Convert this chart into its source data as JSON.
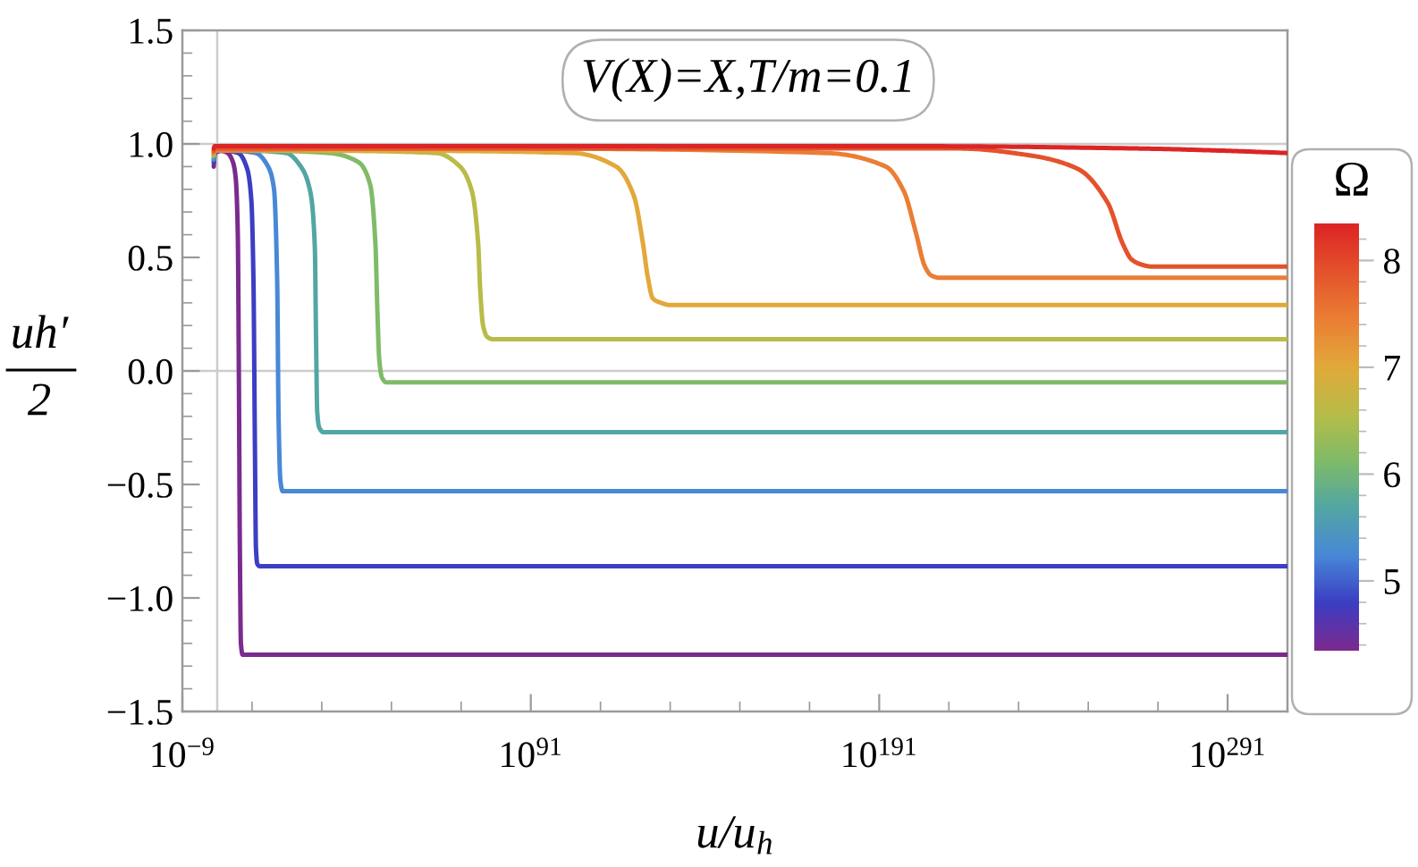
{
  "chart_data": {
    "type": "line",
    "title": "V(X)=X,T/m=0.1",
    "xlabel": "u/u$_{h}$",
    "ylabel": "uh′\n2",
    "clabel": "Ω",
    "log": "x",
    "xlim": [
      1e-09,
      1.5e+308
    ],
    "xticks": [
      {
        "value": 1e-09,
        "label": "10$^{−9}$"
      },
      {
        "value": 100000000000.0,
        "label": null
      },
      {
        "value": 1e+31,
        "label": null
      },
      {
        "value": 1e+51,
        "label": null
      },
      {
        "value": 1e+71,
        "label": null
      },
      {
        "value": 1e+91,
        "label": "10$^{91}$"
      },
      {
        "value": 1e+111,
        "label": null
      },
      {
        "value": 1e+131,
        "label": null
      },
      {
        "value": 1e+151,
        "label": null
      },
      {
        "value": 1e+171,
        "label": null
      },
      {
        "value": 1e+191,
        "label": "10$^{191}$"
      },
      {
        "value": 1e+211,
        "label": null
      },
      {
        "value": 1e+231,
        "label": null
      },
      {
        "value": 1e+251,
        "label": null
      },
      {
        "value": 1e+271,
        "label": null
      },
      {
        "value": 1e+291,
        "label": "10$^{291}$"
      }
    ],
    "ylim": [
      -1.5,
      1.5
    ],
    "yticks": [
      {
        "value": -1.5,
        "label": "−1.5"
      },
      {
        "value": -1.4,
        "label": null
      },
      {
        "value": -1.3,
        "label": null
      },
      {
        "value": -1.2,
        "label": null
      },
      {
        "value": -1.1,
        "label": null
      },
      {
        "value": -1,
        "label": "−1.0"
      },
      {
        "value": -0.9,
        "label": null
      },
      {
        "value": -0.8,
        "label": null
      },
      {
        "value": -0.7,
        "label": null
      },
      {
        "value": -0.6,
        "label": null
      },
      {
        "value": -0.5,
        "label": "−0.5"
      },
      {
        "value": -0.4,
        "label": null
      },
      {
        "value": -0.3,
        "label": null
      },
      {
        "value": -0.2,
        "label": null
      },
      {
        "value": -0.1,
        "label": null
      },
      {
        "value": 0,
        "label": "0.0"
      },
      {
        "value": 0.1,
        "label": null
      },
      {
        "value": 0.2,
        "label": null
      },
      {
        "value": 0.3,
        "label": null
      },
      {
        "value": 0.4,
        "label": null
      },
      {
        "value": 0.5,
        "label": "0.5"
      },
      {
        "value": 0.6,
        "label": null
      },
      {
        "value": 0.7,
        "label": null
      },
      {
        "value": 0.8,
        "label": null
      },
      {
        "value": 0.9,
        "label": null
      },
      {
        "value": 1,
        "label": "1.0"
      },
      {
        "value": 1.1,
        "label": null
      },
      {
        "value": 1.2,
        "label": null
      },
      {
        "value": 1.3,
        "label": null
      },
      {
        "value": 1.4,
        "label": null
      },
      {
        "value": 1.5,
        "label": "1.5"
      }
    ],
    "clim": [
      4.33,
      8.33
    ],
    "cticks": [
      {
        "value": 4.4,
        "label": null
      },
      {
        "value": 4.6,
        "label": null
      },
      {
        "value": 4.8,
        "label": null
      },
      5,
      {
        "value": 5.2,
        "label": null
      },
      {
        "value": 5.4,
        "label": null
      },
      {
        "value": 5.6,
        "label": null
      },
      {
        "value": 5.8,
        "label": null
      },
      6,
      {
        "value": 6.2,
        "label": null
      },
      {
        "value": 6.4,
        "label": null
      },
      {
        "value": 6.6,
        "label": null
      },
      {
        "value": 6.8,
        "label": null
      },
      7,
      {
        "value": 7.2,
        "label": null
      },
      {
        "value": 7.4,
        "label": null
      },
      {
        "value": 7.6,
        "label": null
      },
      {
        "value": 7.8,
        "label": null
      },
      8,
      {
        "value": 8.2,
        "label": null
      }
    ],
    "ref_lines": [
      {
        "axis": "y",
        "value": 0,
        "color": "#cccccc"
      },
      {
        "axis": "y",
        "value": 1,
        "color": "#cccccc"
      },
      {
        "axis": "x",
        "value": 10,
        "color": "#cccccc"
      }
    ],
    "series": [
      {
        "color": "#7b2a8e",
        "x": [
          1,
          2,
          100,
          10000.0,
          320000.0,
          2000000.0,
          8000000.0,
          16000000.0,
          32000000.0,
          63000000.0,
          200000000.0,
          1e+308
        ],
        "values": [
          0.9,
          0.96,
          0.97,
          0.96,
          0.92,
          0.85,
          0.6,
          0,
          -0.8,
          -1.2,
          -1.25,
          -1.25
        ]
      },
      {
        "color": "#3c3ec4",
        "x": [
          1,
          2,
          1000.0,
          10000000.0,
          4000000000.0,
          63000000000.0,
          250000000000.0,
          630000000000.0,
          1300000000000.0,
          3200000000000.0,
          16000000000000.0,
          1e+308
        ],
        "values": [
          0.92,
          0.96,
          0.97,
          0.96,
          0.89,
          0.75,
          0.4,
          -0.3,
          -0.78,
          -0.85,
          -0.86,
          -0.86
        ]
      },
      {
        "color": "#4888d6",
        "x": [
          1,
          2,
          100000.0,
          1000000000000.0,
          4000000000000000.0,
          2e+17,
          1.6e+18,
          4e+18,
          1.3e+19,
          6.3e+19,
          1e+21,
          1e+308
        ],
        "values": [
          0.93,
          0.97,
          0.97,
          0.96,
          0.9,
          0.8,
          0.4,
          -0.2,
          -0.48,
          -0.53,
          -0.53,
          -0.53
        ]
      },
      {
        "color": "#52a6a4",
        "x": [
          1,
          2,
          10000000000.0,
          6.3e+20,
          1e+25,
          5e+27,
          1e+29,
          2.5e+29,
          5e+29,
          2e+30,
          3.2e+31,
          1e+308
        ],
        "values": [
          0.94,
          0.97,
          0.97,
          0.96,
          0.9,
          0.79,
          0.55,
          0.1,
          -0.18,
          -0.25,
          -0.27,
          -0.27
        ]
      },
      {
        "color": "#80bb68",
        "x": [
          1,
          2,
          1000000000000000.0,
          1e+33,
          3.2e+41,
          8e+44,
          2.5e+46,
          1e+47,
          3.2e+47,
          2e+48,
          3.2e+49,
          1e+52,
          1e+308
        ],
        "values": [
          0.95,
          0.97,
          0.97,
          0.96,
          0.92,
          0.82,
          0.56,
          0.25,
          0.05,
          -0.03,
          -0.05,
          -0.05,
          -0.05
        ]
      },
      {
        "color": "#b8bc48",
        "x": [
          1,
          2,
          1e+30,
          6.3e+63,
          5e+70,
          1.3e+74,
          8e+75,
          3.2e+76,
          2e+77,
          3.2e+78,
          1e+80,
          1e+83,
          1e+308
        ],
        "values": [
          0.95,
          0.97,
          0.97,
          0.96,
          0.9,
          0.79,
          0.56,
          0.35,
          0.2,
          0.15,
          0.14,
          0.14,
          0.14
        ]
      },
      {
        "color": "#e2a83a",
        "x": [
          1,
          2,
          1e+50,
          1e+103,
          3.2e+115,
          4e+120,
          1.6e+123,
          3.2e+124,
          1e+126,
          2.5e+128,
          1e+131,
          1e+308
        ],
        "values": [
          0.96,
          0.97,
          0.97,
          0.96,
          0.9,
          0.77,
          0.56,
          0.42,
          0.32,
          0.3,
          0.29,
          0.29
        ]
      },
      {
        "color": "#ea7e34",
        "x": [
          1,
          2,
          1e+80,
          5e+175,
          8e+192,
          1.3e+198,
          3.2e+201,
          1.3e+204,
          1e+206,
          2.5e+208,
          1e+212,
          1e+308
        ],
        "values": [
          0.96,
          0.97,
          0.98,
          0.96,
          0.9,
          0.79,
          0.61,
          0.46,
          0.42,
          0.41,
          0.41,
          0.41
        ]
      },
      {
        "color": "#e4522b",
        "x": [
          1,
          2,
          1e+100,
          4e+213,
          1e+234,
          1e+248,
          4e+256,
          8e+260,
          3.2e+263,
          1e+266,
          1e+269,
          1e+275,
          1e+308
        ],
        "values": [
          0.97,
          0.98,
          0.98,
          0.98,
          0.95,
          0.89,
          0.74,
          0.56,
          0.49,
          0.47,
          0.46,
          0.46,
          0.46
        ]
      },
      {
        "color": "#dc2525",
        "x": [
          1,
          2,
          1e+200,
          1e+265,
          1e+290,
          1e+308
        ],
        "values": [
          0.98,
          0.99,
          0.99,
          0.98,
          0.97,
          0.96
        ]
      }
    ]
  }
}
